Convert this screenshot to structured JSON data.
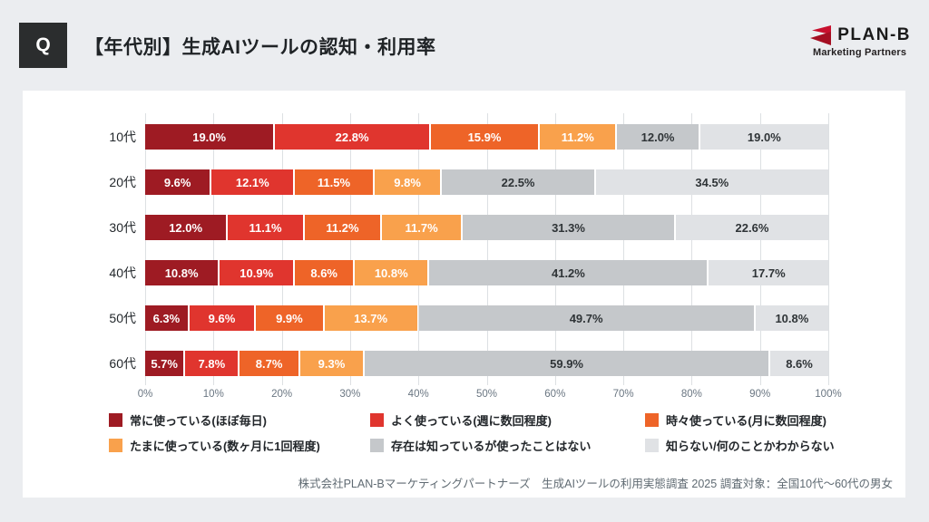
{
  "header": {
    "q_label": "Q",
    "title": "【年代別】生成AIツールの認知・利用率"
  },
  "logo": {
    "name": "PLAN-B",
    "subtitle": "Marketing Partners",
    "mark_color": "#c8102e",
    "mark_color_dark": "#9e1b23"
  },
  "chart_data": {
    "type": "bar",
    "orientation": "horizontal-stacked",
    "title": "【年代別】生成AIツールの認知・利用率",
    "categories": [
      "10代",
      "20代",
      "30代",
      "40代",
      "50代",
      "60代"
    ],
    "series": [
      {
        "name": "常に使っている(ほぼ毎日)",
        "color": "#9e1b23",
        "label_color": "#ffffff",
        "values": [
          19.0,
          9.6,
          12.0,
          10.8,
          6.3,
          5.7
        ]
      },
      {
        "name": "よく使っている(週に数回程度)",
        "color": "#e0352e",
        "label_color": "#ffffff",
        "values": [
          22.8,
          12.1,
          11.1,
          10.9,
          9.6,
          7.8
        ]
      },
      {
        "name": "時々使っている(月に数回程度)",
        "color": "#ee6428",
        "label_color": "#ffffff",
        "values": [
          15.9,
          11.5,
          11.2,
          8.6,
          9.9,
          8.7
        ]
      },
      {
        "name": "たまに使っている(数ヶ月に1回程度)",
        "color": "#f9a14c",
        "label_color": "#ffffff",
        "values": [
          11.2,
          9.8,
          11.7,
          10.8,
          13.7,
          9.3
        ]
      },
      {
        "name": "存在は知っているが使ったことはない",
        "color": "#c5c8cb",
        "label_color": "#2f3437",
        "values": [
          12.0,
          22.5,
          31.3,
          41.2,
          49.7,
          59.9
        ]
      },
      {
        "name": "知らない/何のことかわからない",
        "color": "#e0e2e5",
        "label_color": "#2f3437",
        "values": [
          19.0,
          34.5,
          22.6,
          17.7,
          10.8,
          8.6
        ]
      }
    ],
    "x_ticks": [
      "0%",
      "10%",
      "20%",
      "30%",
      "40%",
      "50%",
      "60%",
      "70%",
      "80%",
      "90%",
      "100%"
    ],
    "xlim": [
      0,
      100
    ],
    "grid": true,
    "legend_position": "bottom",
    "value_label_suffix": "%"
  },
  "footer": {
    "source": "株式会社PLAN-Bマーケティングパートナーズ　生成AIツールの利用実態調査 2025 調査対象：全国10代～60代の男女"
  }
}
